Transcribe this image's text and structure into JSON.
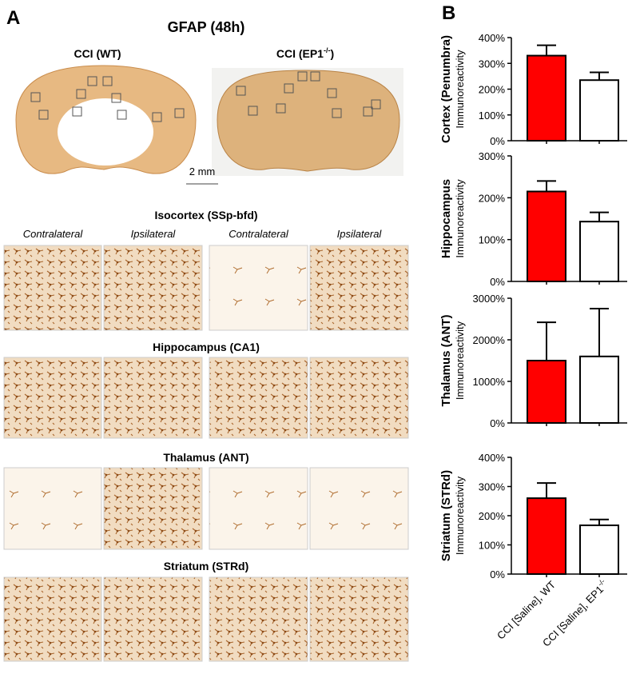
{
  "panel_a": {
    "letter": "A",
    "title": "GFAP (48h)",
    "wt_label": "CCI (WT)",
    "ep1_label": "CCI (EP1",
    "ep1_sup": "-/-",
    "ep1_close": ")",
    "scale": "2 mm",
    "column_labels": [
      "Contralateral",
      "Ipsilateral",
      "Contralateral",
      "Ipsilateral"
    ],
    "regions": [
      "Isocortex (SSp-bfd)",
      "Hippocampus (CA1)",
      "Thalamus (ANT)",
      "Striatum (STRd)"
    ]
  },
  "panel_b_letter": "B",
  "chart_data": [
    {
      "type": "bar",
      "ylabel": "Cortex (Penumbra)",
      "ylabel2": "Immunoreactivity",
      "categories": [
        null,
        null
      ],
      "values": [
        330,
        235
      ],
      "errors": [
        40,
        30
      ],
      "colors": [
        "#ff0000",
        "#ffffff"
      ],
      "ylim": [
        0,
        400
      ],
      "yticks": [
        {
          "value": 0,
          "label": "0%"
        },
        {
          "value": 100,
          "label": "100%"
        },
        {
          "value": 200,
          "label": "200%"
        },
        {
          "value": 300,
          "label": "300%"
        },
        {
          "value": 400,
          "label": "400%"
        }
      ]
    },
    {
      "type": "bar",
      "ylabel": "Hippocampus",
      "ylabel2": "Immunoreactivity",
      "categories": [
        null,
        null
      ],
      "values": [
        215,
        143
      ],
      "errors": [
        25,
        22
      ],
      "colors": [
        "#ff0000",
        "#ffffff"
      ],
      "ylim": [
        0,
        300
      ],
      "yticks": [
        {
          "value": 0,
          "label": "0%"
        },
        {
          "value": 100,
          "label": "100%"
        },
        {
          "value": 200,
          "label": "200%"
        },
        {
          "value": 300,
          "label": "300%"
        }
      ]
    },
    {
      "type": "bar",
      "ylabel": "Thalamus (ANT)",
      "ylabel2": "Immunoreactivity",
      "categories": [
        null,
        null
      ],
      "values": [
        1500,
        1600
      ],
      "errors": [
        920,
        1150
      ],
      "colors": [
        "#ff0000",
        "#ffffff"
      ],
      "ylim": [
        0,
        3000
      ],
      "yticks": [
        {
          "value": 0,
          "label": "0%"
        },
        {
          "value": 1000,
          "label": "1000%"
        },
        {
          "value": 2000,
          "label": "2000%"
        },
        {
          "value": 3000,
          "label": "3000%"
        }
      ]
    },
    {
      "type": "bar",
      "ylabel": "Striatum (STRd)",
      "ylabel2": "Immunoreactivity",
      "categories": [
        "CCI [Saline], WT",
        "CCI [Saline], EP1"
      ],
      "category_superscript": "-/-",
      "values": [
        260,
        167
      ],
      "errors": [
        52,
        20
      ],
      "colors": [
        "#ff0000",
        "#ffffff"
      ],
      "ylim": [
        0,
        400
      ],
      "yticks": [
        {
          "value": 0,
          "label": "0%"
        },
        {
          "value": 100,
          "label": "100%"
        },
        {
          "value": 200,
          "label": "200%"
        },
        {
          "value": 300,
          "label": "300%"
        },
        {
          "value": 400,
          "label": "400%"
        }
      ]
    }
  ]
}
